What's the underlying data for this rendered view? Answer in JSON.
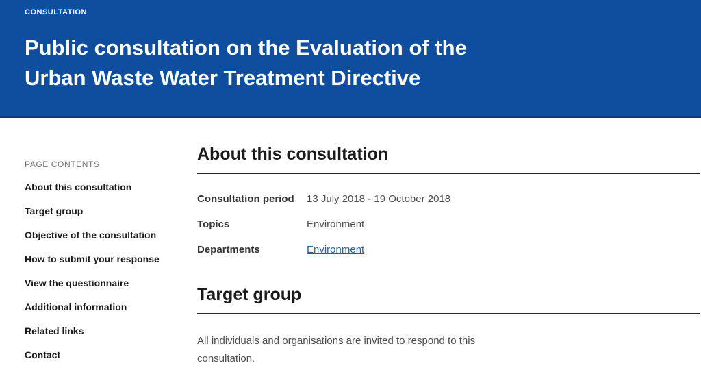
{
  "banner": {
    "kicker": "CONSULTATION",
    "title": "Public consultation on the Evaluation of the Urban Waste Water Treatment Directive"
  },
  "sidebar": {
    "heading": "PAGE CONTENTS",
    "items": [
      {
        "label": "About this consultation"
      },
      {
        "label": "Target group"
      },
      {
        "label": "Objective of the consultation"
      },
      {
        "label": "How to submit your response"
      },
      {
        "label": "View the questionnaire"
      },
      {
        "label": "Additional information"
      },
      {
        "label": "Related links"
      },
      {
        "label": "Contact"
      }
    ]
  },
  "main": {
    "about": {
      "heading": "About this consultation",
      "rows": [
        {
          "label": "Consultation period",
          "value": "13 July 2018 - 19 October 2018"
        },
        {
          "label": "Topics",
          "value": "Environment"
        },
        {
          "label": "Departments",
          "value": "Environment"
        }
      ]
    },
    "target": {
      "heading": "Target group",
      "body": "All individuals and organisations are invited to respond to this consultation."
    }
  },
  "colors": {
    "banner_blue": "#0f4d9e",
    "banner_border": "#0a3a7d",
    "link_blue": "#2d5f8f",
    "rule_dark": "#262626"
  }
}
